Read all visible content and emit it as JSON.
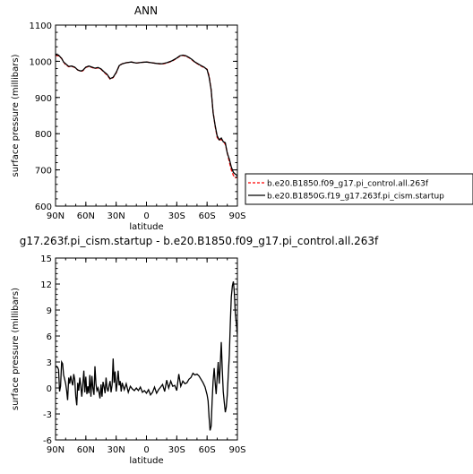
{
  "chart_data": [
    {
      "type": "line",
      "title": "ANN",
      "xlabel": "latitude",
      "ylabel": "surface pressure (millibars)",
      "xlim": [
        90,
        -90
      ],
      "ylim": [
        600,
        1100
      ],
      "x_ticks": [
        90,
        60,
        30,
        0,
        -30,
        -60,
        -90
      ],
      "x_tick_labels": [
        "90N",
        "60N",
        "30N",
        "0",
        "30S",
        "60S",
        "90S"
      ],
      "y_ticks": [
        600,
        700,
        800,
        900,
        1000,
        1100
      ],
      "y_tick_labels": [
        "600",
        "700",
        "800",
        "900",
        "1000",
        "1100"
      ],
      "legend": "right",
      "series": [
        {
          "name": "b.e20.B1850.f09_g17.pi_control.all.263f",
          "color": "#ff0000",
          "dash": "dashed",
          "x": [
            90,
            87,
            84,
            82,
            80,
            77,
            74,
            71,
            68,
            65,
            63,
            60,
            57,
            54,
            51,
            48,
            45,
            42,
            39,
            36,
            33,
            30,
            27,
            24,
            20,
            15,
            10,
            5,
            0,
            -5,
            -10,
            -15,
            -20,
            -25,
            -30,
            -33,
            -36,
            -39,
            -42,
            -45,
            -48,
            -51,
            -54,
            -57,
            -60,
            -62,
            -64,
            -66,
            -68,
            -70,
            -72,
            -74,
            -76,
            -78,
            -80,
            -82,
            -84,
            -86,
            -88,
            -90
          ],
          "y": [
            1016,
            1015,
            1008,
            998,
            990,
            985,
            986,
            983,
            976,
            972,
            974,
            983,
            986,
            983,
            980,
            982,
            978,
            970,
            962,
            951,
            955,
            968,
            988,
            993,
            996,
            998,
            995,
            997,
            998,
            996,
            994,
            992,
            995,
            1000,
            1008,
            1014,
            1016,
            1014,
            1010,
            1004,
            997,
            992,
            987,
            983,
            978,
            960,
            920,
            860,
            820,
            790,
            782,
            784,
            780,
            770,
            748,
            722,
            700,
            685,
            678,
            680
          ]
        },
        {
          "name": "b.e20.B1850G.f19_g17.263f.pi_cism.startup",
          "color": "#000000",
          "dash": "solid",
          "x": [
            90,
            87,
            84,
            82,
            80,
            77,
            74,
            71,
            68,
            65,
            63,
            60,
            57,
            54,
            51,
            48,
            45,
            42,
            39,
            36,
            33,
            30,
            27,
            24,
            20,
            15,
            10,
            5,
            0,
            -5,
            -10,
            -15,
            -20,
            -25,
            -30,
            -33,
            -36,
            -39,
            -42,
            -45,
            -48,
            -51,
            -54,
            -57,
            -60,
            -62,
            -64,
            -66,
            -68,
            -70,
            -72,
            -74,
            -76,
            -78,
            -80,
            -82,
            -84,
            -86,
            -88,
            -90
          ],
          "y": [
            1018,
            1017,
            1008,
            998,
            993,
            986,
            987,
            984,
            976,
            973,
            975,
            984,
            987,
            984,
            981,
            983,
            979,
            971,
            964,
            952,
            956,
            969,
            988,
            993,
            996,
            998,
            995,
            997,
            998,
            996,
            994,
            993,
            996,
            1001,
            1009,
            1015,
            1017,
            1015,
            1011,
            1005,
            998,
            993,
            988,
            984,
            977,
            956,
            922,
            858,
            822,
            794,
            783,
            788,
            778,
            775,
            746,
            730,
            708,
            693,
            688,
            684
          ]
        }
      ]
    },
    {
      "type": "line",
      "title": "g17.263f.pi_cism.startup - b.e20.B1850.f09_g17.pi_control.all.263f",
      "xlabel": "latitude",
      "ylabel": "surface pressure (millibars)",
      "xlim": [
        90,
        -90
      ],
      "ylim": [
        -6,
        15
      ],
      "x_ticks": [
        90,
        60,
        30,
        0,
        -30,
        -60,
        -90
      ],
      "x_tick_labels": [
        "90N",
        "60N",
        "30N",
        "0",
        "30S",
        "60S",
        "90S"
      ],
      "y_ticks": [
        -6,
        -3,
        0,
        3,
        6,
        9,
        12,
        15
      ],
      "y_tick_labels": [
        "-6",
        "-3",
        "0",
        "3",
        "6",
        "9",
        "12",
        "15"
      ],
      "series": [
        {
          "color": "#000000",
          "x": [
            90,
            89,
            88,
            87,
            86,
            85,
            84,
            83,
            82,
            81,
            80,
            79,
            78,
            77,
            76,
            75,
            74,
            73,
            72,
            71,
            70,
            69,
            68,
            67,
            66,
            65,
            64,
            63,
            62,
            61,
            60,
            59,
            58,
            57,
            56,
            55,
            54,
            53,
            52,
            51,
            50,
            49,
            48,
            47,
            46,
            45,
            44,
            43,
            42,
            41,
            40,
            39,
            38,
            37,
            36,
            35,
            34,
            33,
            32,
            31,
            30,
            29,
            28,
            27,
            26,
            25,
            24,
            22,
            20,
            18,
            16,
            14,
            12,
            10,
            8,
            6,
            4,
            2,
            0,
            -2,
            -4,
            -6,
            -8,
            -10,
            -12,
            -14,
            -16,
            -18,
            -20,
            -22,
            -24,
            -26,
            -28,
            -30,
            -32,
            -34,
            -36,
            -38,
            -40,
            -42,
            -44,
            -46,
            -48,
            -50,
            -52,
            -54,
            -56,
            -58,
            -60,
            -61,
            -62,
            -63,
            -64,
            -65,
            -66,
            -67,
            -68,
            -69,
            -70,
            -71,
            -72,
            -73,
            -74,
            -75,
            -76,
            -77,
            -78,
            -79,
            -80,
            -81,
            -82,
            -83,
            -84,
            -85,
            -86,
            -87,
            -88,
            -89,
            -90
          ],
          "y": [
            2.4,
            2.5,
            2.4,
            2.1,
            -0.4,
            0.2,
            3.0,
            2.8,
            1.5,
            1.0,
            0.5,
            -0.3,
            -1.4,
            1.2,
            0.5,
            1.4,
            0.8,
            0.3,
            1.6,
            1.0,
            -1.0,
            -2.0,
            0.6,
            -0.3,
            1.2,
            0.2,
            -1.0,
            0.5,
            2.0,
            -0.5,
            1.3,
            -0.7,
            0.2,
            -0.6,
            1.5,
            -1.0,
            1.4,
            0.0,
            -0.8,
            2.5,
            0.5,
            -0.3,
            0.0,
            -0.5,
            -1.2,
            0.4,
            -1.0,
            0.7,
            0.2,
            -0.6,
            1.2,
            0.0,
            -0.4,
            0.3,
            0.8,
            -0.5,
            0.4,
            3.4,
            0.6,
            1.9,
            -0.4,
            0.6,
            2.0,
            0.3,
            0.8,
            -0.4,
            0.6,
            -0.2,
            0.5,
            -0.5,
            0.2,
            -0.1,
            -0.3,
            0.0,
            -0.3,
            0.1,
            -0.5,
            -0.3,
            -0.6,
            -0.2,
            -0.8,
            -0.5,
            0.1,
            -0.6,
            -0.2,
            0.1,
            0.4,
            -0.4,
            0.9,
            0.0,
            0.8,
            0.2,
            0.3,
            -0.3,
            1.6,
            0.2,
            0.8,
            0.5,
            0.6,
            1.0,
            1.2,
            1.7,
            1.5,
            1.6,
            1.4,
            1.0,
            0.6,
            0.1,
            -0.8,
            -1.5,
            -3.4,
            -4.9,
            -4.4,
            -1.5,
            0.8,
            2.3,
            0.6,
            -0.7,
            1.2,
            3.0,
            0.5,
            2.4,
            5.3,
            2.2,
            -0.4,
            -1.6,
            -2.8,
            -2.2,
            -0.8,
            1.5,
            3.8,
            7.5,
            10.5,
            11.8,
            12.3,
            11.0,
            8.6,
            7.4,
            6.1
          ]
        }
      ]
    }
  ]
}
